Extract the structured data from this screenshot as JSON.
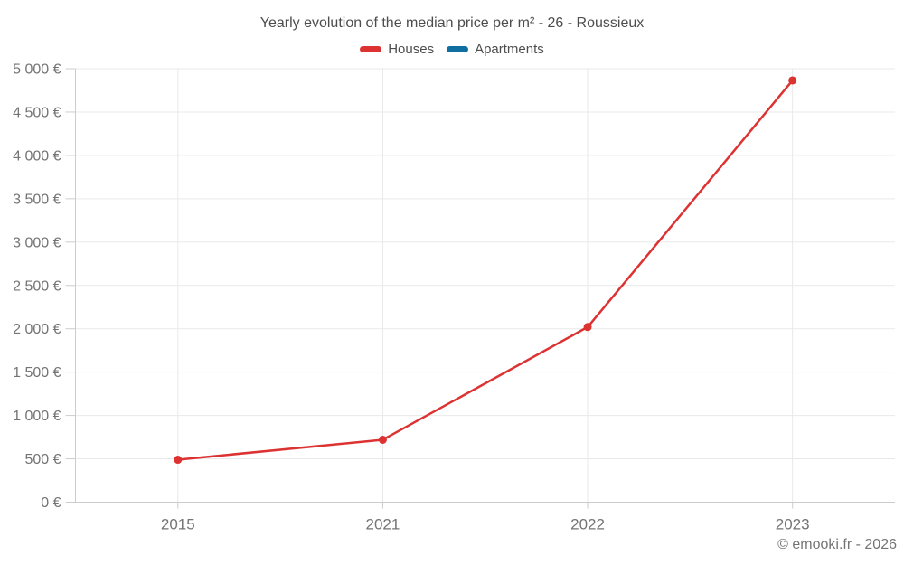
{
  "chart_data": {
    "type": "line",
    "title": "Yearly evolution of the median price per m² - 26 - Roussieux",
    "categories": [
      "2015",
      "2021",
      "2022",
      "2023"
    ],
    "series": [
      {
        "name": "Houses",
        "color": "#dd3232",
        "values": [
          490,
          720,
          2020,
          4865
        ]
      },
      {
        "name": "Apartments",
        "color": "#0f6fa0",
        "values": []
      }
    ],
    "xlabel": "",
    "ylabel": "",
    "ylim": [
      0,
      5000
    ],
    "y_tick_step": 500,
    "y_tick_labels": [
      "0 €",
      "500 €",
      "1 000 €",
      "1 500 €",
      "2 000 €",
      "2 500 €",
      "3 000 €",
      "3 500 €",
      "4 000 €",
      "4 500 €",
      "5 000 €"
    ],
    "grid": true,
    "legend_position": "top"
  },
  "footer": {
    "copyright": "© emooki.fr - 2026"
  },
  "colors": {
    "background": "#ffffff",
    "grid": "#e9e9e9",
    "axis": "#cccccc",
    "tick_text": "#747474",
    "title_text": "#4d4d4d"
  }
}
